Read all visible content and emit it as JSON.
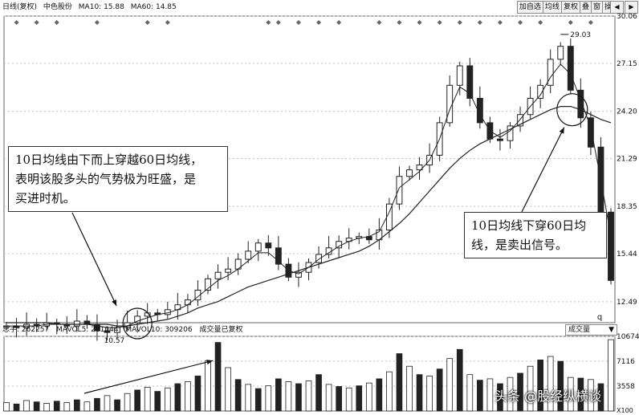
{
  "header": {
    "period": "日线(复权)",
    "stock_name": "中色股份",
    "ma10_label": "MA10: 15.88",
    "ma60_label": "MA60: 14.85",
    "buttons": [
      "加自选",
      "均线",
      "复权",
      "叠",
      "窗",
      "操盘"
    ],
    "nav_prev": "◀",
    "nav_next": "▶"
  },
  "volume_bar": {
    "total_label": "总手: 262257",
    "mavol5_label": "MAVOL5: 281044",
    "mavol10_label": "MAVOL10: 309206",
    "note": "成交量已复权",
    "dropdown": "成交量"
  },
  "annotations": {
    "buy_note": [
      "10日均线由下而上穿越60日均线，",
      "表明该股多头的气势极为旺盛，是",
      "买进时机。"
    ],
    "sell_note": [
      "10日均线下穿60日均",
      "线，是卖出信号。"
    ],
    "high_label": "29.03",
    "low_label": "10.57",
    "marker_q": "q"
  },
  "watermark": "头条 @股经纵横谈",
  "colors": {
    "candle": "#222222",
    "ma": "#222222",
    "grid": "#bfbfbf",
    "accent": "#cc2222"
  },
  "chart_data": [
    {
      "type": "candlestick",
      "title": "",
      "y_ticks": [
        30.06,
        27.15,
        24.2,
        21.29,
        18.35,
        15.44,
        12.49
      ],
      "ylim": [
        11.2,
        30.06
      ],
      "grid": true,
      "series": [
        {
          "name": "MA10",
          "values": [
            11.0,
            11.0,
            11.0,
            11.0,
            11.1,
            11.1,
            11.1,
            11.1,
            11.1,
            11.0,
            10.9,
            10.9,
            11.0,
            11.3,
            11.5,
            11.7,
            11.8,
            12.0,
            12.3,
            12.8,
            13.3,
            13.8,
            14.1,
            14.5,
            15.0,
            15.5,
            15.5,
            15.0,
            14.4,
            14.2,
            14.6,
            15.1,
            15.5,
            15.9,
            16.2,
            16.4,
            16.5,
            16.8,
            18.0,
            19.5,
            20.0,
            20.5,
            21.2,
            22.5,
            24.3,
            25.7,
            25.3,
            24.0,
            23.0,
            22.6,
            23.0,
            23.7,
            24.5,
            25.2,
            26.3,
            27.1,
            26.5,
            24.9,
            23.2,
            20.0,
            16.5
          ]
        },
        {
          "name": "MA60",
          "values": [
            11.2,
            11.2,
            11.2,
            11.2,
            11.2,
            11.1,
            11.1,
            11.1,
            11.1,
            11.1,
            11.1,
            11.0,
            11.0,
            11.1,
            11.2,
            11.3,
            11.4,
            11.6,
            11.8,
            12.1,
            12.3,
            12.5,
            12.8,
            13.1,
            13.4,
            13.6,
            13.8,
            14.0,
            14.2,
            14.4,
            14.6,
            14.8,
            15.0,
            15.2,
            15.4,
            15.6,
            15.9,
            16.3,
            16.8,
            17.3,
            17.9,
            18.6,
            19.3,
            20.0,
            20.7,
            21.3,
            21.8,
            22.2,
            22.5,
            22.8,
            23.1,
            23.4,
            23.7,
            24.0,
            24.3,
            24.5,
            24.5,
            24.3,
            24.0,
            23.7,
            23.5
          ]
        }
      ],
      "close": [
        11.0,
        10.9,
        11.1,
        11.0,
        11.2,
        11.1,
        11.0,
        11.3,
        11.1,
        10.7,
        10.6,
        10.9,
        11.2,
        11.6,
        11.8,
        11.7,
        12.0,
        12.3,
        12.6,
        13.2,
        13.9,
        14.3,
        14.5,
        15.1,
        15.6,
        16.1,
        15.8,
        14.8,
        14.0,
        14.3,
        14.9,
        15.4,
        15.8,
        16.2,
        16.4,
        16.5,
        16.3,
        16.9,
        18.5,
        20.2,
        20.6,
        20.9,
        21.5,
        23.5,
        25.8,
        27.0,
        25.0,
        23.5,
        22.5,
        22.4,
        23.3,
        24.0,
        25.0,
        25.8,
        27.4,
        28.2,
        25.5,
        23.8,
        22.0,
        18.0,
        13.8
      ],
      "low_label_value": 10.57,
      "high_label_value": 29.03
    },
    {
      "type": "bar",
      "title": "",
      "y_ticks": [
        10674,
        7116,
        3558
      ],
      "ylim": [
        0,
        10674
      ],
      "x_label": "X100",
      "values": [
        1200,
        1000,
        1500,
        1300,
        1100,
        1400,
        1200,
        1600,
        1300,
        1800,
        2200,
        1600,
        2500,
        3000,
        3400,
        2800,
        3300,
        3900,
        4200,
        5000,
        7200,
        9800,
        6200,
        4500,
        3800,
        3200,
        3600,
        4600,
        4200,
        3900,
        4300,
        5200,
        3800,
        3500,
        3300,
        3600,
        4000,
        4600,
        5600,
        8200,
        6400,
        5200,
        5000,
        6000,
        7500,
        8800,
        5200,
        4400,
        4600,
        3900,
        4800,
        5400,
        6400,
        7300,
        7800,
        7100,
        4800,
        4700,
        4500,
        3900,
        10200
      ]
    }
  ]
}
